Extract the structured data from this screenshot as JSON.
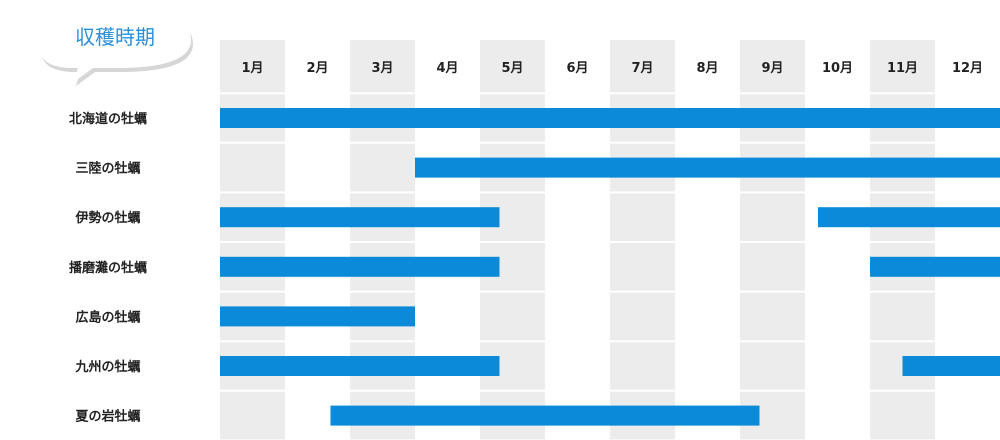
{
  "chart_data": {
    "type": "gantt",
    "title": "収穫時期",
    "categories": [
      "北海道の牡蠣",
      "三陸の牡蠣",
      "伊勢の牡蠣",
      "播磨灘の牡蠣",
      "広島の牡蠣",
      "九州の牡蠣",
      "夏の岩牡蠣"
    ],
    "months": [
      "1月",
      "2月",
      "3月",
      "4月",
      "5月",
      "6月",
      "7月",
      "8月",
      "9月",
      "10月",
      "11月",
      "12月"
    ],
    "xlim": [
      1,
      13
    ],
    "grid": true,
    "series": [
      {
        "category": "北海道の牡蠣",
        "ranges": [
          [
            1,
            13
          ]
        ]
      },
      {
        "category": "三陸の牡蠣",
        "ranges": [
          [
            4,
            13
          ]
        ]
      },
      {
        "category": "伊勢の牡蠣",
        "ranges": [
          [
            1,
            5.3
          ],
          [
            10.2,
            13
          ]
        ]
      },
      {
        "category": "播磨灘の牡蠣",
        "ranges": [
          [
            1,
            5.3
          ],
          [
            11,
            13
          ]
        ]
      },
      {
        "category": "広島の牡蠣",
        "ranges": [
          [
            1,
            4
          ]
        ]
      },
      {
        "category": "九州の牡蠣",
        "ranges": [
          [
            1,
            5.3
          ],
          [
            11.5,
            13
          ]
        ]
      },
      {
        "category": "夏の岩牡蠣",
        "ranges": [
          [
            2.7,
            9.3
          ]
        ]
      }
    ]
  },
  "colors": {
    "bar": "#0a8ad8",
    "column_shade": "#ececec",
    "row_divider": "#ffffff",
    "title": "#2a90d8",
    "bubble_shadow": "#d6d6d6"
  }
}
